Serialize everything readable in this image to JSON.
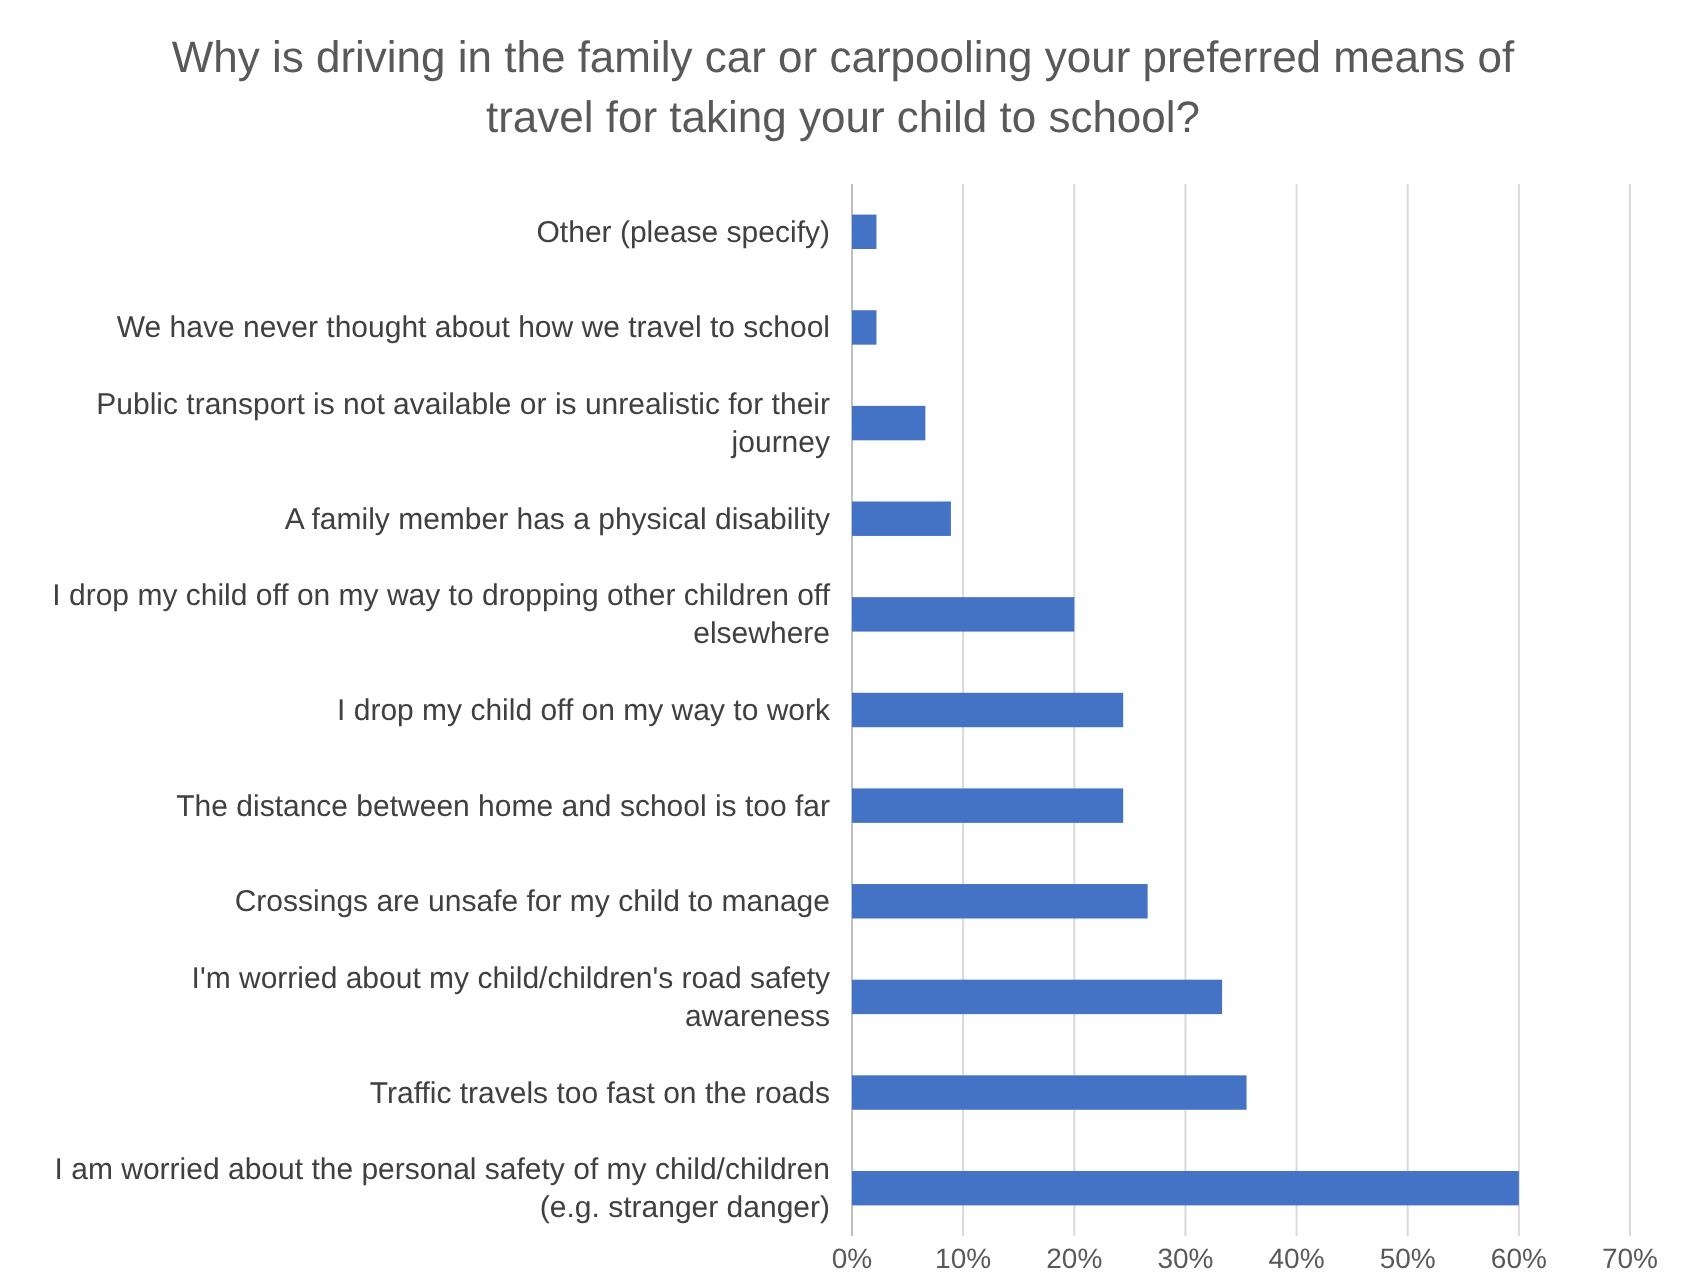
{
  "chart_data": {
    "type": "bar",
    "orientation": "horizontal",
    "title": "Why is driving in the family car or carpooling your preferred means of travel for taking your child to school?",
    "categories": [
      "Other (please specify)",
      "We have never thought about how we travel to school",
      "Public transport is not available or is unrealistic for their journey",
      "A family member has a physical disability",
      "I drop my child off on my way to dropping other children off elsewhere",
      "I drop my child off on my way to work",
      "The distance between home and school is too far",
      "Crossings are unsafe for my child to manage",
      "I'm worried about my child/children's road safety awareness",
      "Traffic travels too fast on the roads",
      "I am worried about the personal safety of my child/children (e.g. stranger danger)"
    ],
    "values": [
      2.2,
      2.2,
      6.6,
      8.9,
      20,
      24.4,
      24.4,
      26.6,
      33.3,
      35.5,
      60
    ],
    "color": "#4472c4",
    "xlim": [
      0,
      70
    ],
    "xticks": [
      {
        "value": 0,
        "label": "0%"
      },
      {
        "value": 10,
        "label": "10%"
      },
      {
        "value": 20,
        "label": "20%"
      },
      {
        "value": 30,
        "label": "30%"
      },
      {
        "value": 40,
        "label": "40%"
      },
      {
        "value": 50,
        "label": "50%"
      },
      {
        "value": 60,
        "label": "60%"
      },
      {
        "value": 70,
        "label": "70%"
      }
    ],
    "grid": "x"
  }
}
